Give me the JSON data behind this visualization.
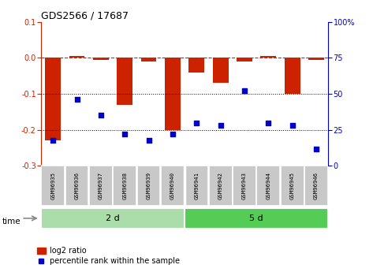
{
  "title": "GDS2566 / 17687",
  "samples": [
    "GSM96935",
    "GSM96936",
    "GSM96937",
    "GSM96938",
    "GSM96939",
    "GSM96940",
    "GSM96941",
    "GSM96942",
    "GSM96943",
    "GSM96944",
    "GSM96945",
    "GSM96946"
  ],
  "log2_ratio": [
    -0.23,
    0.005,
    -0.005,
    -0.13,
    -0.01,
    -0.2,
    -0.04,
    -0.07,
    -0.01,
    0.005,
    -0.1,
    -0.005
  ],
  "percentile_rank": [
    18,
    46,
    35,
    22,
    18,
    22,
    30,
    28,
    52,
    30,
    28,
    12
  ],
  "groups": [
    {
      "label": "2 d",
      "start": 0,
      "end": 6,
      "color": "#aaddaa"
    },
    {
      "label": "5 d",
      "start": 6,
      "end": 12,
      "color": "#55cc55"
    }
  ],
  "bar_color": "#CC2200",
  "dot_color": "#0000CC",
  "ylim_left": [
    -0.3,
    0.1
  ],
  "ylim_right": [
    0,
    100
  ],
  "yticks_left": [
    -0.3,
    -0.2,
    -0.1,
    0.0,
    0.1
  ],
  "yticks_right": [
    0,
    25,
    50,
    75,
    100
  ],
  "hline_zero_color": "#CC2200",
  "hline_dotted_vals": [
    -0.1,
    -0.2
  ],
  "bar_width": 0.65,
  "time_label": "time",
  "legend_items": [
    "log2 ratio",
    "percentile rank within the sample"
  ]
}
